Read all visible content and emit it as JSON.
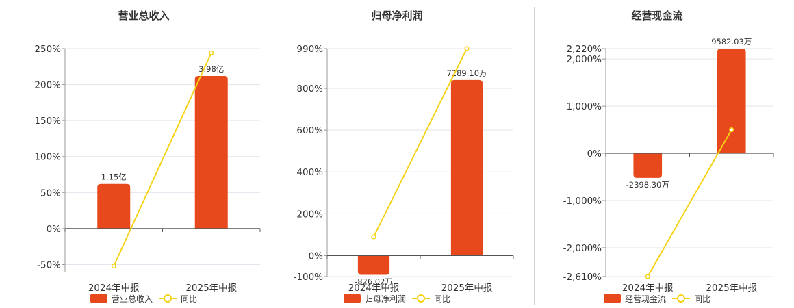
{
  "chart_data": [
    {
      "type": "bar",
      "title": "营业总收入",
      "categories": [
        "2024年中报",
        "2025年中报"
      ],
      "ylim": [
        -60,
        250
      ],
      "yticks": [
        250,
        200,
        150,
        100,
        50,
        0,
        -50
      ],
      "ytick_labels": [
        "250%",
        "200%",
        "150%",
        "100%",
        "50%",
        "0%",
        "-50%"
      ],
      "grid": true,
      "legend": "bottom",
      "series": [
        {
          "name": "营业总收入",
          "kind": "bar",
          "values": [
            62,
            212
          ],
          "labels": [
            "1.15亿",
            "3.98亿"
          ],
          "color": "#e8491c"
        },
        {
          "name": "同比",
          "kind": "line",
          "values": [
            -52,
            244
          ],
          "color": "#f5d214"
        }
      ]
    },
    {
      "type": "bar",
      "title": "归母净利润",
      "categories": [
        "2024年中报",
        "2025年中报"
      ],
      "ylim": [
        -100,
        990
      ],
      "yticks": [
        990,
        800,
        600,
        400,
        200,
        0,
        -100
      ],
      "ytick_labels": [
        "990%",
        "800%",
        "600%",
        "400%",
        "200%",
        "0%",
        "-100%"
      ],
      "grid": true,
      "legend": "bottom",
      "series": [
        {
          "name": "归母净利润",
          "kind": "bar",
          "values": [
            -92,
            840
          ],
          "labels": [
            "-826.02万",
            "7289.10万"
          ],
          "color": "#e8491c"
        },
        {
          "name": "同比",
          "kind": "line",
          "values": [
            90,
            990
          ],
          "color": "#f5d214"
        }
      ]
    },
    {
      "type": "bar",
      "title": "经营现金流",
      "categories": [
        "2024年中报",
        "2025年中报"
      ],
      "ylim": [
        -2610,
        2220
      ],
      "yticks": [
        2220,
        2000,
        1000,
        0,
        -1000,
        -2000,
        -2610
      ],
      "ytick_labels": [
        "2,220%",
        "2,000%",
        "1,000%",
        "0%",
        "-1,000%",
        "-2,000%",
        "-2,610%"
      ],
      "grid": true,
      "legend": "bottom",
      "series": [
        {
          "name": "经营现金流",
          "kind": "bar",
          "values": [
            -520,
            2220
          ],
          "labels": [
            "-2398.30万",
            "9582.03万"
          ],
          "color": "#e8491c"
        },
        {
          "name": "同比",
          "kind": "line",
          "values": [
            -2610,
            500
          ],
          "color": "#f5d214"
        }
      ]
    }
  ]
}
